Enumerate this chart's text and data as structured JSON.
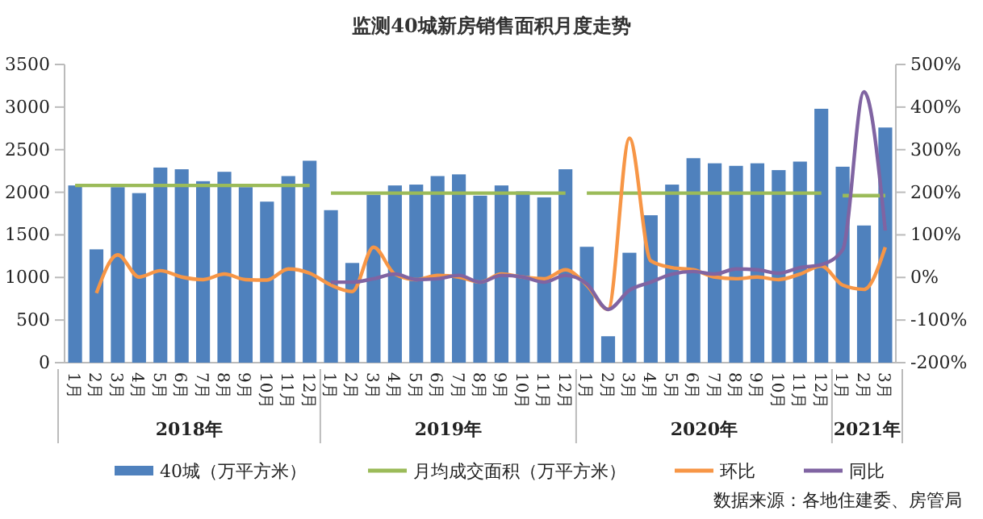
{
  "chart_data": {
    "type": "bar",
    "title": "监测40城新房销售面积月度走势",
    "categories": [
      "1月",
      "2月",
      "3月",
      "4月",
      "5月",
      "6月",
      "7月",
      "8月",
      "9月",
      "10月",
      "11月",
      "12月",
      "1月",
      "2月",
      "3月",
      "4月",
      "5月",
      "6月",
      "7月",
      "8月",
      "9月",
      "10月",
      "11月",
      "12月",
      "1月",
      "2月",
      "3月",
      "4月",
      "5月",
      "6月",
      "7月",
      "8月",
      "9月",
      "10月",
      "11月",
      "12月",
      "1月",
      "2月",
      "3月"
    ],
    "series": [
      {
        "name": "40城（万平方米）",
        "color": "#4f81bd",
        "values": [
          2080,
          1330,
          2060,
          1990,
          2290,
          2270,
          2130,
          2240,
          2060,
          1890,
          2190,
          2370,
          1790,
          1170,
          1970,
          2080,
          2090,
          2190,
          2210,
          1960,
          2080,
          2010,
          1940,
          2270,
          1360,
          310,
          1290,
          1730,
          2090,
          2400,
          2340,
          2310,
          2340,
          2260,
          2360,
          2980,
          2300,
          1610,
          2760
        ]
      },
      {
        "name": "月均成交面积（万平方米）",
        "type": "line",
        "color": "#9bbb59",
        "values": [
          2080,
          2080,
          2080,
          2080,
          2080,
          2080,
          2080,
          2080,
          2080,
          2080,
          2080,
          2080,
          null,
          null,
          null,
          null,
          null,
          null,
          null,
          null,
          null,
          null,
          null,
          null,
          null,
          null,
          null,
          null,
          null,
          null,
          null,
          null,
          null,
          null,
          null,
          null,
          null,
          null,
          null
        ]
      },
      {
        "type": "line",
        "color": "#9bbb59",
        "values": [
          null,
          null,
          null,
          null,
          null,
          null,
          null,
          null,
          null,
          null,
          null,
          null,
          1990,
          1990,
          1990,
          1990,
          1990,
          1990,
          1990,
          1990,
          1990,
          1990,
          1990,
          1990,
          null,
          null,
          null,
          null,
          null,
          null,
          null,
          null,
          null,
          null,
          null,
          null,
          null,
          null,
          null
        ]
      },
      {
        "type": "line",
        "color": "#9bbb59",
        "values": [
          null,
          null,
          null,
          null,
          null,
          null,
          null,
          null,
          null,
          null,
          null,
          null,
          null,
          null,
          null,
          null,
          null,
          null,
          null,
          null,
          null,
          null,
          null,
          null,
          1990,
          1990,
          1990,
          1990,
          1990,
          1990,
          1990,
          1990,
          1990,
          1990,
          1990,
          1990,
          null,
          null,
          null
        ]
      },
      {
        "type": "line",
        "color": "#9bbb59",
        "values": [
          null,
          null,
          null,
          null,
          null,
          null,
          null,
          null,
          null,
          null,
          null,
          null,
          null,
          null,
          null,
          null,
          null,
          null,
          null,
          null,
          null,
          null,
          null,
          null,
          null,
          null,
          null,
          null,
          null,
          null,
          null,
          null,
          null,
          null,
          null,
          null,
          1960,
          1960,
          1960
        ]
      },
      {
        "name": "环比",
        "type": "line",
        "axis": "y2",
        "color": "#f79646",
        "values": [
          null,
          -37,
          53,
          1,
          16,
          1,
          -5,
          8,
          -5,
          -6,
          20,
          10,
          -18,
          -33,
          71,
          8,
          -5,
          5,
          1,
          -11,
          8,
          1,
          -3,
          18,
          -18,
          -75,
          327,
          39,
          23,
          18,
          1,
          -3,
          1,
          -5,
          8,
          27,
          -18,
          -28,
          71
        ]
      },
      {
        "name": "同比",
        "type": "line",
        "axis": "y2",
        "color": "#8064a2",
        "values": [
          null,
          null,
          null,
          null,
          null,
          null,
          null,
          null,
          null,
          null,
          null,
          null,
          -11,
          -11,
          -3,
          8,
          -5,
          -3,
          5,
          -11,
          5,
          1,
          -11,
          5,
          -15,
          -75,
          -30,
          -11,
          8,
          14,
          8,
          20,
          18,
          10,
          23,
          30,
          65,
          436,
          110
        ]
      }
    ],
    "ylim": [
      0,
      3500
    ],
    "yticks": [
      0,
      500,
      1000,
      1500,
      2000,
      2500,
      3000,
      3500
    ],
    "y2lim": [
      -200,
      500
    ],
    "y2ticks": [
      {
        "value": -200,
        "label": "-200%"
      },
      {
        "value": -100,
        "label": "-100%"
      },
      {
        "value": 0,
        "label": "0%"
      },
      {
        "value": 100,
        "label": "100%"
      },
      {
        "value": 200,
        "label": "200%"
      },
      {
        "value": 300,
        "label": "300%"
      },
      {
        "value": 400,
        "label": "400%"
      },
      {
        "value": 500,
        "label": "500%"
      }
    ],
    "grid": false,
    "legend": "bottom",
    "marker": "none",
    "line_style": "solid",
    "annotations": [
      "2018年",
      "2019年",
      "2020年",
      "2021年",
      "数据来源：各地住建委、房管局"
    ]
  }
}
